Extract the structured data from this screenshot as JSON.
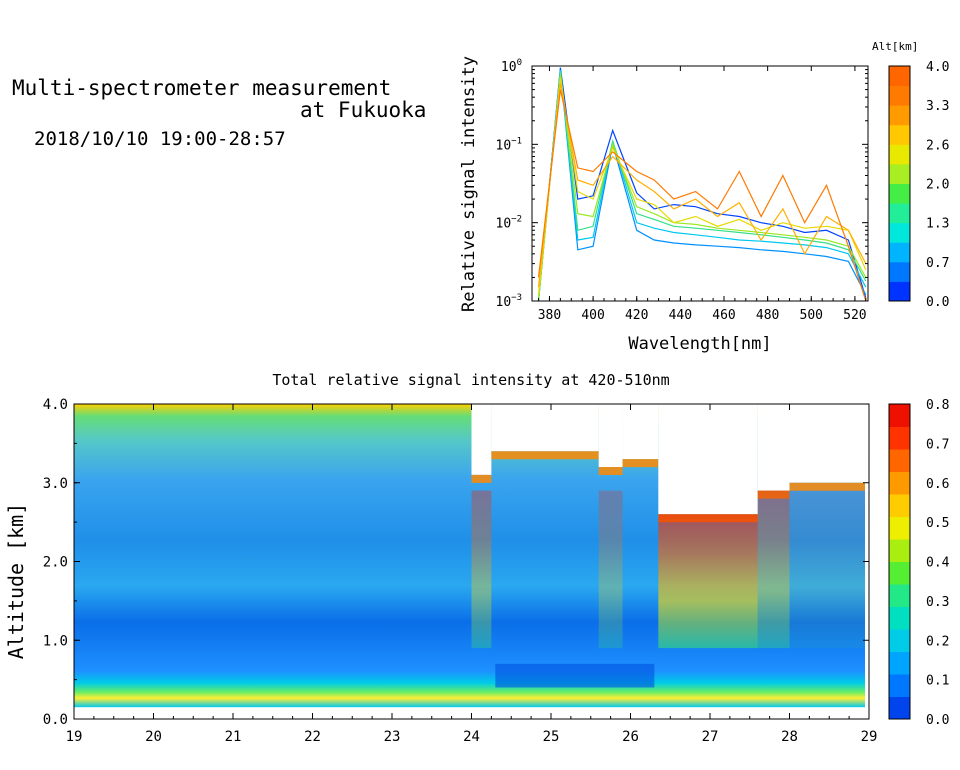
{
  "header": {
    "title_line1": "Multi-spectrometer measurement",
    "title_line2": "at Fukuoka",
    "datetime": "2018/10/10 19:00-28:57"
  },
  "chart_data": [
    {
      "type": "line",
      "xlabel": "Wavelength[nm]",
      "ylabel": "Relative signal intensity",
      "yscale": "log",
      "ylim": [
        0.001,
        1
      ],
      "xlim": [
        372,
        526
      ],
      "x": [
        375,
        385,
        393,
        400,
        409,
        420,
        428,
        437,
        447,
        457,
        467,
        477,
        487,
        497,
        507,
        517,
        525
      ],
      "x_ticks": [
        "380",
        "400",
        "420",
        "440",
        "460",
        "480",
        "500",
        "520"
      ],
      "y_tick_labels": [
        {
          "base": "10",
          "exp": "0"
        },
        {
          "base": "10",
          "exp": "−1"
        },
        {
          "base": "10",
          "exp": "−2"
        },
        {
          "base": "10",
          "exp": "−3"
        }
      ],
      "colorbar": {
        "label": "Alt[km]",
        "ticks": [
          "0.0",
          "0.7",
          "1.3",
          "2.0",
          "2.6",
          "3.3",
          "4.0"
        ],
        "colors": [
          "#0033ff",
          "#0077ff",
          "#00b4ff",
          "#00e8dc",
          "#22ee99",
          "#44ee44",
          "#a8ee22",
          "#e8e800",
          "#ffc800",
          "#ff9a00",
          "#ff7a00",
          "#ff6600"
        ]
      },
      "series": [
        {
          "color": "#0044ff",
          "values": [
            0.0008,
            0.95,
            0.02,
            0.022,
            0.15,
            0.024,
            0.015,
            0.017,
            0.016,
            0.013,
            0.012,
            0.01,
            0.009,
            0.0075,
            0.008,
            0.006,
            0.0011
          ]
        },
        {
          "color": "#0090ff",
          "values": [
            0.0008,
            0.9,
            0.0045,
            0.005,
            0.1,
            0.008,
            0.006,
            0.0055,
            0.0052,
            0.005,
            0.0048,
            0.0045,
            0.0043,
            0.004,
            0.0037,
            0.0032,
            0.0012
          ]
        },
        {
          "color": "#00c8f0",
          "values": [
            0.0008,
            0.88,
            0.006,
            0.0065,
            0.11,
            0.01,
            0.0085,
            0.0075,
            0.007,
            0.0065,
            0.006,
            0.0058,
            0.0055,
            0.0052,
            0.0048,
            0.004,
            0.0015
          ]
        },
        {
          "color": "#33e088",
          "values": [
            0.0008,
            0.85,
            0.008,
            0.009,
            0.11,
            0.013,
            0.011,
            0.009,
            0.0085,
            0.008,
            0.0075,
            0.007,
            0.0065,
            0.006,
            0.0055,
            0.0045,
            0.0018
          ]
        },
        {
          "color": "#99e822",
          "values": [
            0.001,
            0.8,
            0.013,
            0.012,
            0.1,
            0.016,
            0.013,
            0.01,
            0.0095,
            0.0085,
            0.008,
            0.0075,
            0.007,
            0.0065,
            0.006,
            0.005,
            0.002
          ]
        },
        {
          "color": "#e8d800",
          "values": [
            0.0012,
            0.7,
            0.025,
            0.02,
            0.09,
            0.02,
            0.017,
            0.01,
            0.012,
            0.009,
            0.011,
            0.008,
            0.01,
            0.0085,
            0.009,
            0.008,
            0.0025
          ]
        },
        {
          "color": "#ffb000",
          "values": [
            0.0015,
            0.6,
            0.035,
            0.03,
            0.07,
            0.035,
            0.025,
            0.015,
            0.02,
            0.012,
            0.018,
            0.006,
            0.015,
            0.004,
            0.012,
            0.008,
            0.003
          ]
        },
        {
          "color": "#ff7a00",
          "values": [
            0.002,
            0.5,
            0.05,
            0.045,
            0.08,
            0.045,
            0.035,
            0.02,
            0.025,
            0.015,
            0.045,
            0.012,
            0.04,
            0.01,
            0.03,
            0.005,
            0.001
          ]
        }
      ]
    },
    {
      "type": "heatmap",
      "title": "Total relative signal intensity at 420-510nm",
      "ylabel": "Altitude [km]",
      "xlim": [
        19,
        29
      ],
      "ylim": [
        0,
        4
      ],
      "data_x_end": 28.95,
      "x_ticks": [
        "19",
        "20",
        "21",
        "22",
        "23",
        "24",
        "25",
        "26",
        "27",
        "28",
        "29"
      ],
      "y_ticks": [
        "0.0",
        "1.0",
        "2.0",
        "3.0",
        "4.0"
      ],
      "colorbar": {
        "ticks": [
          "0.0",
          "0.1",
          "0.2",
          "0.3",
          "0.4",
          "0.5",
          "0.6",
          "0.7",
          "0.8"
        ],
        "colors": [
          "#0044ee",
          "#0077ff",
          "#00a5ff",
          "#00cce8",
          "#00e0c0",
          "#22e888",
          "#55ee33",
          "#aaee11",
          "#eeee00",
          "#ffcc00",
          "#ff9900",
          "#ff6600",
          "#ff3300",
          "#ee1100"
        ]
      },
      "columns": [
        {
          "x0": 19.0,
          "x1": 24.0,
          "cloud": 0,
          "cloud_top": 4.0
        },
        {
          "x0": 24.0,
          "x1": 24.25,
          "cloud": 0.35,
          "cloud_top": 3.1
        },
        {
          "x0": 24.25,
          "x1": 25.6,
          "cloud": 0,
          "cloud_top": 3.4
        },
        {
          "x0": 25.6,
          "x1": 25.9,
          "cloud": 0.25,
          "cloud_top": 3.2
        },
        {
          "x0": 25.9,
          "x1": 26.35,
          "cloud": 0,
          "cloud_top": 3.3
        },
        {
          "x0": 26.35,
          "x1": 27.6,
          "cloud": 0.6,
          "cloud_top": 2.6
        },
        {
          "x0": 27.6,
          "x1": 28.0,
          "cloud": 0.4,
          "cloud_top": 2.9
        },
        {
          "x0": 28.0,
          "x1": 28.95,
          "cloud": 0.1,
          "cloud_top": 3.0
        }
      ]
    }
  ]
}
